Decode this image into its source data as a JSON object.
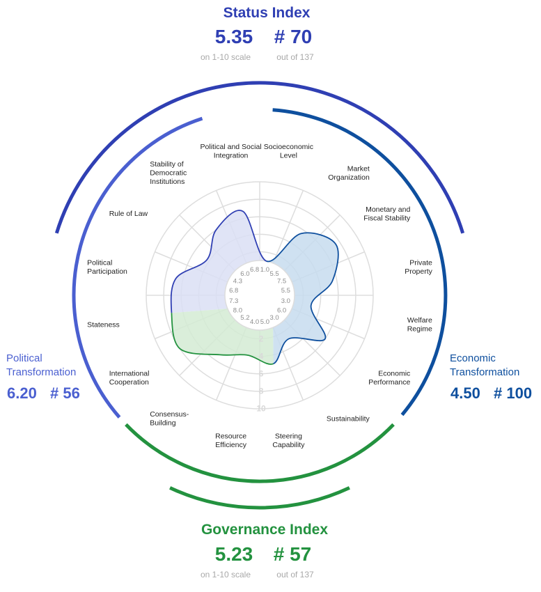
{
  "colors": {
    "status": "#2f3fb3",
    "political": "#4a5fd0",
    "economic": "#0e4f9e",
    "governance": "#23923f",
    "subtext": "#a8a8a8",
    "grid": "#dddddd"
  },
  "status_index": {
    "title": "Status Index",
    "score": "5.35",
    "rank": "# 70",
    "score_note": "on 1-10 scale",
    "rank_note": "out of 137"
  },
  "governance_index": {
    "title": "Governance Index",
    "score": "5.23",
    "rank": "# 57",
    "score_note": "on 1-10 scale",
    "rank_note": "out of 137"
  },
  "political_transformation": {
    "title_line1": "Political",
    "title_line2": "Transformation",
    "score": "6.20",
    "rank": "# 56"
  },
  "economic_transformation": {
    "title_line1": "Economic",
    "title_line2": "Transformation",
    "score": "4.50",
    "rank": "# 100"
  },
  "chart_data": {
    "type": "radar",
    "scale_min": 1,
    "scale_max": 10,
    "ring_labels": [
      "2",
      "4",
      "6",
      "8",
      "10"
    ],
    "criteria": [
      {
        "label": [
          "Socioeconomic",
          "Level"
        ],
        "value": 1.0,
        "value_label": "1.0",
        "group": "economic"
      },
      {
        "label": [
          "Market",
          "Organization"
        ],
        "value": 5.5,
        "value_label": "5.5",
        "group": "economic"
      },
      {
        "label": [
          "Monetary and",
          "Fiscal Stability"
        ],
        "value": 7.5,
        "value_label": "7.5",
        "group": "economic"
      },
      {
        "label": [
          "Private",
          "Property"
        ],
        "value": 5.5,
        "value_label": "5.5",
        "group": "economic"
      },
      {
        "label": [
          "Welfare",
          "Regime"
        ],
        "value": 3.0,
        "value_label": "3.0",
        "group": "economic"
      },
      {
        "label": [
          "Economic",
          "Performance"
        ],
        "value": 6.0,
        "value_label": "6.0",
        "group": "economic"
      },
      {
        "label": [
          "Sustainability"
        ],
        "value": 3.0,
        "value_label": "3.0",
        "group": "economic"
      },
      {
        "label": [
          "Steering",
          "Capability"
        ],
        "value": 5.0,
        "value_label": "5.0",
        "group": "governance"
      },
      {
        "label": [
          "Resource",
          "Efficiency"
        ],
        "value": 4.0,
        "value_label": "4.0",
        "group": "governance"
      },
      {
        "label": [
          "Consensus-",
          "Building"
        ],
        "value": 5.2,
        "value_label": "5.2",
        "group": "governance"
      },
      {
        "label": [
          "International",
          "Cooperation"
        ],
        "value": 8.0,
        "value_label": "8.0",
        "group": "governance"
      },
      {
        "label": [
          "Stateness"
        ],
        "value": 7.3,
        "value_label": "7.3",
        "group": "political"
      },
      {
        "label": [
          "Political",
          "Participation"
        ],
        "value": 6.8,
        "value_label": "6.8",
        "group": "political"
      },
      {
        "label": [
          "Rule of Law"
        ],
        "value": 4.3,
        "value_label": "4.3",
        "group": "political"
      },
      {
        "label": [
          "Stability of",
          "Democratic",
          "Institutions"
        ],
        "value": 6.0,
        "value_label": "6.0",
        "group": "political"
      },
      {
        "label": [
          "Political and Social",
          "Integration"
        ],
        "value": 6.8,
        "value_label": "6.8",
        "group": "political"
      }
    ]
  }
}
